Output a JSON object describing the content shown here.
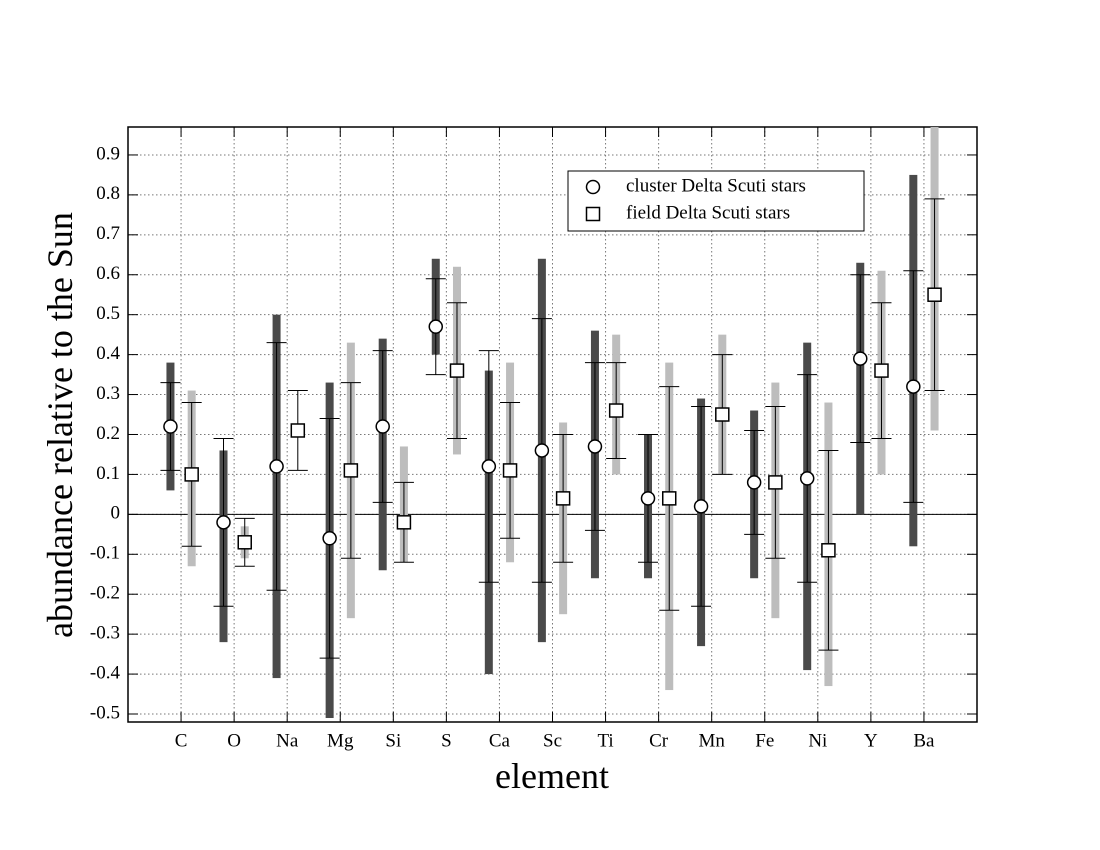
{
  "chart_data": {
    "type": "errorbar",
    "x_label": "element",
    "y_label": "abundance relative to the Sun",
    "categories": [
      "C",
      "O",
      "Na",
      "Mg",
      "Si",
      "S",
      "Ca",
      "Sc",
      "Ti",
      "Cr",
      "Mn",
      "Fe",
      "Ni",
      "Y",
      "Ba"
    ],
    "ylim": [
      -0.52,
      0.97
    ],
    "yticks": [
      -0.5,
      -0.4,
      -0.3,
      -0.2,
      -0.1,
      0,
      0.1,
      0.2,
      0.3,
      0.4,
      0.5,
      0.6,
      0.7,
      0.8,
      0.9
    ],
    "grid": true,
    "legend": "upper right",
    "series": [
      {
        "name": "cluster Delta Scuti stars",
        "marker": "circle",
        "color": "#4a4a4a",
        "values": [
          0.22,
          -0.02,
          0.12,
          -0.06,
          0.22,
          0.47,
          0.12,
          0.16,
          0.17,
          0.04,
          0.02,
          0.08,
          0.09,
          0.39,
          0.32
        ],
        "errors": [
          0.11,
          0.21,
          0.31,
          0.3,
          0.19,
          0.12,
          0.29,
          0.33,
          0.21,
          0.16,
          0.25,
          0.13,
          0.26,
          0.21,
          0.29
        ],
        "min": [
          0.06,
          -0.32,
          -0.41,
          -0.51,
          -0.14,
          0.4,
          -0.4,
          -0.32,
          -0.16,
          -0.16,
          -0.33,
          -0.16,
          -0.39,
          0.0,
          -0.08
        ],
        "max": [
          0.38,
          0.16,
          0.5,
          0.33,
          0.44,
          0.64,
          0.36,
          0.64,
          0.46,
          0.2,
          0.29,
          0.26,
          0.43,
          0.63,
          0.85
        ]
      },
      {
        "name": "field Delta Scuti stars",
        "marker": "square",
        "color": "#bdbdbd",
        "values": [
          0.1,
          -0.07,
          0.21,
          0.11,
          -0.02,
          0.36,
          0.11,
          0.04,
          0.26,
          0.04,
          0.25,
          0.08,
          -0.09,
          0.36,
          0.55
        ],
        "errors": [
          0.18,
          0.06,
          0.1,
          0.22,
          0.1,
          0.17,
          0.17,
          0.16,
          0.12,
          0.28,
          0.15,
          0.19,
          0.25,
          0.17,
          0.24
        ],
        "min": [
          -0.13,
          -0.11,
          null,
          -0.26,
          -0.12,
          0.15,
          -0.12,
          -0.25,
          0.1,
          -0.44,
          0.1,
          -0.26,
          -0.43,
          0.1,
          0.21
        ],
        "max": [
          0.31,
          -0.03,
          null,
          0.43,
          0.17,
          0.62,
          0.38,
          0.23,
          0.45,
          0.38,
          0.45,
          0.33,
          0.28,
          0.61,
          0.97
        ]
      }
    ]
  }
}
